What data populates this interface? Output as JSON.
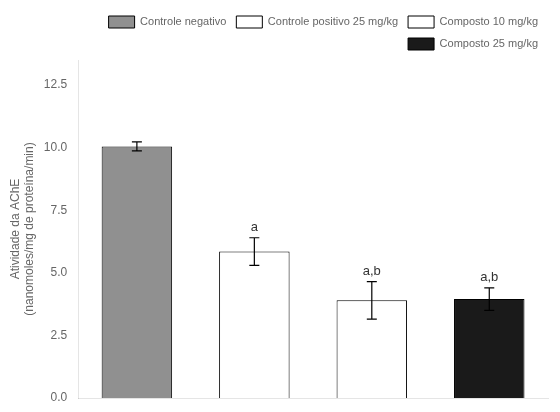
{
  "chart_data": {
    "type": "bar",
    "ylabel": "Atividade da AChE\n(nanomoles/mg de proteína/min)",
    "categories": [
      null,
      null,
      null,
      null
    ],
    "series": [
      {
        "name": "Controle negativo",
        "color": "#909090",
        "values": [
          10.05,
          null,
          null,
          null
        ],
        "errors": [
          0.18,
          null,
          null,
          null
        ]
      },
      {
        "name": "Controle positivo 25 mg/kg",
        "color": "#ffffff",
        "values": [
          null,
          5.85,
          null,
          null
        ],
        "errors": [
          null,
          0.55,
          null,
          null
        ]
      },
      {
        "name": "Composto 10 mg/kg",
        "color": "#ffffff",
        "values": [
          null,
          null,
          3.9,
          null
        ],
        "errors": [
          null,
          null,
          0.75,
          null
        ]
      },
      {
        "name": "Composto 25 mg/kg",
        "color": "#1a1a1a",
        "values": [
          null,
          null,
          null,
          3.95
        ],
        "errors": [
          null,
          null,
          null,
          0.45
        ]
      }
    ],
    "annotations": [
      null,
      "a",
      "a,b",
      "a,b"
    ],
    "ylim": [
      0,
      13.5
    ],
    "yticks": [
      {
        "value": 0,
        "label": "0.0"
      },
      2.5,
      {
        "value": 5,
        "label": "5.0"
      },
      7.5,
      {
        "value": 10,
        "label": "10.0"
      },
      12.5
    ],
    "grid": false,
    "legend": "upper right",
    "tick_labels": "y"
  }
}
